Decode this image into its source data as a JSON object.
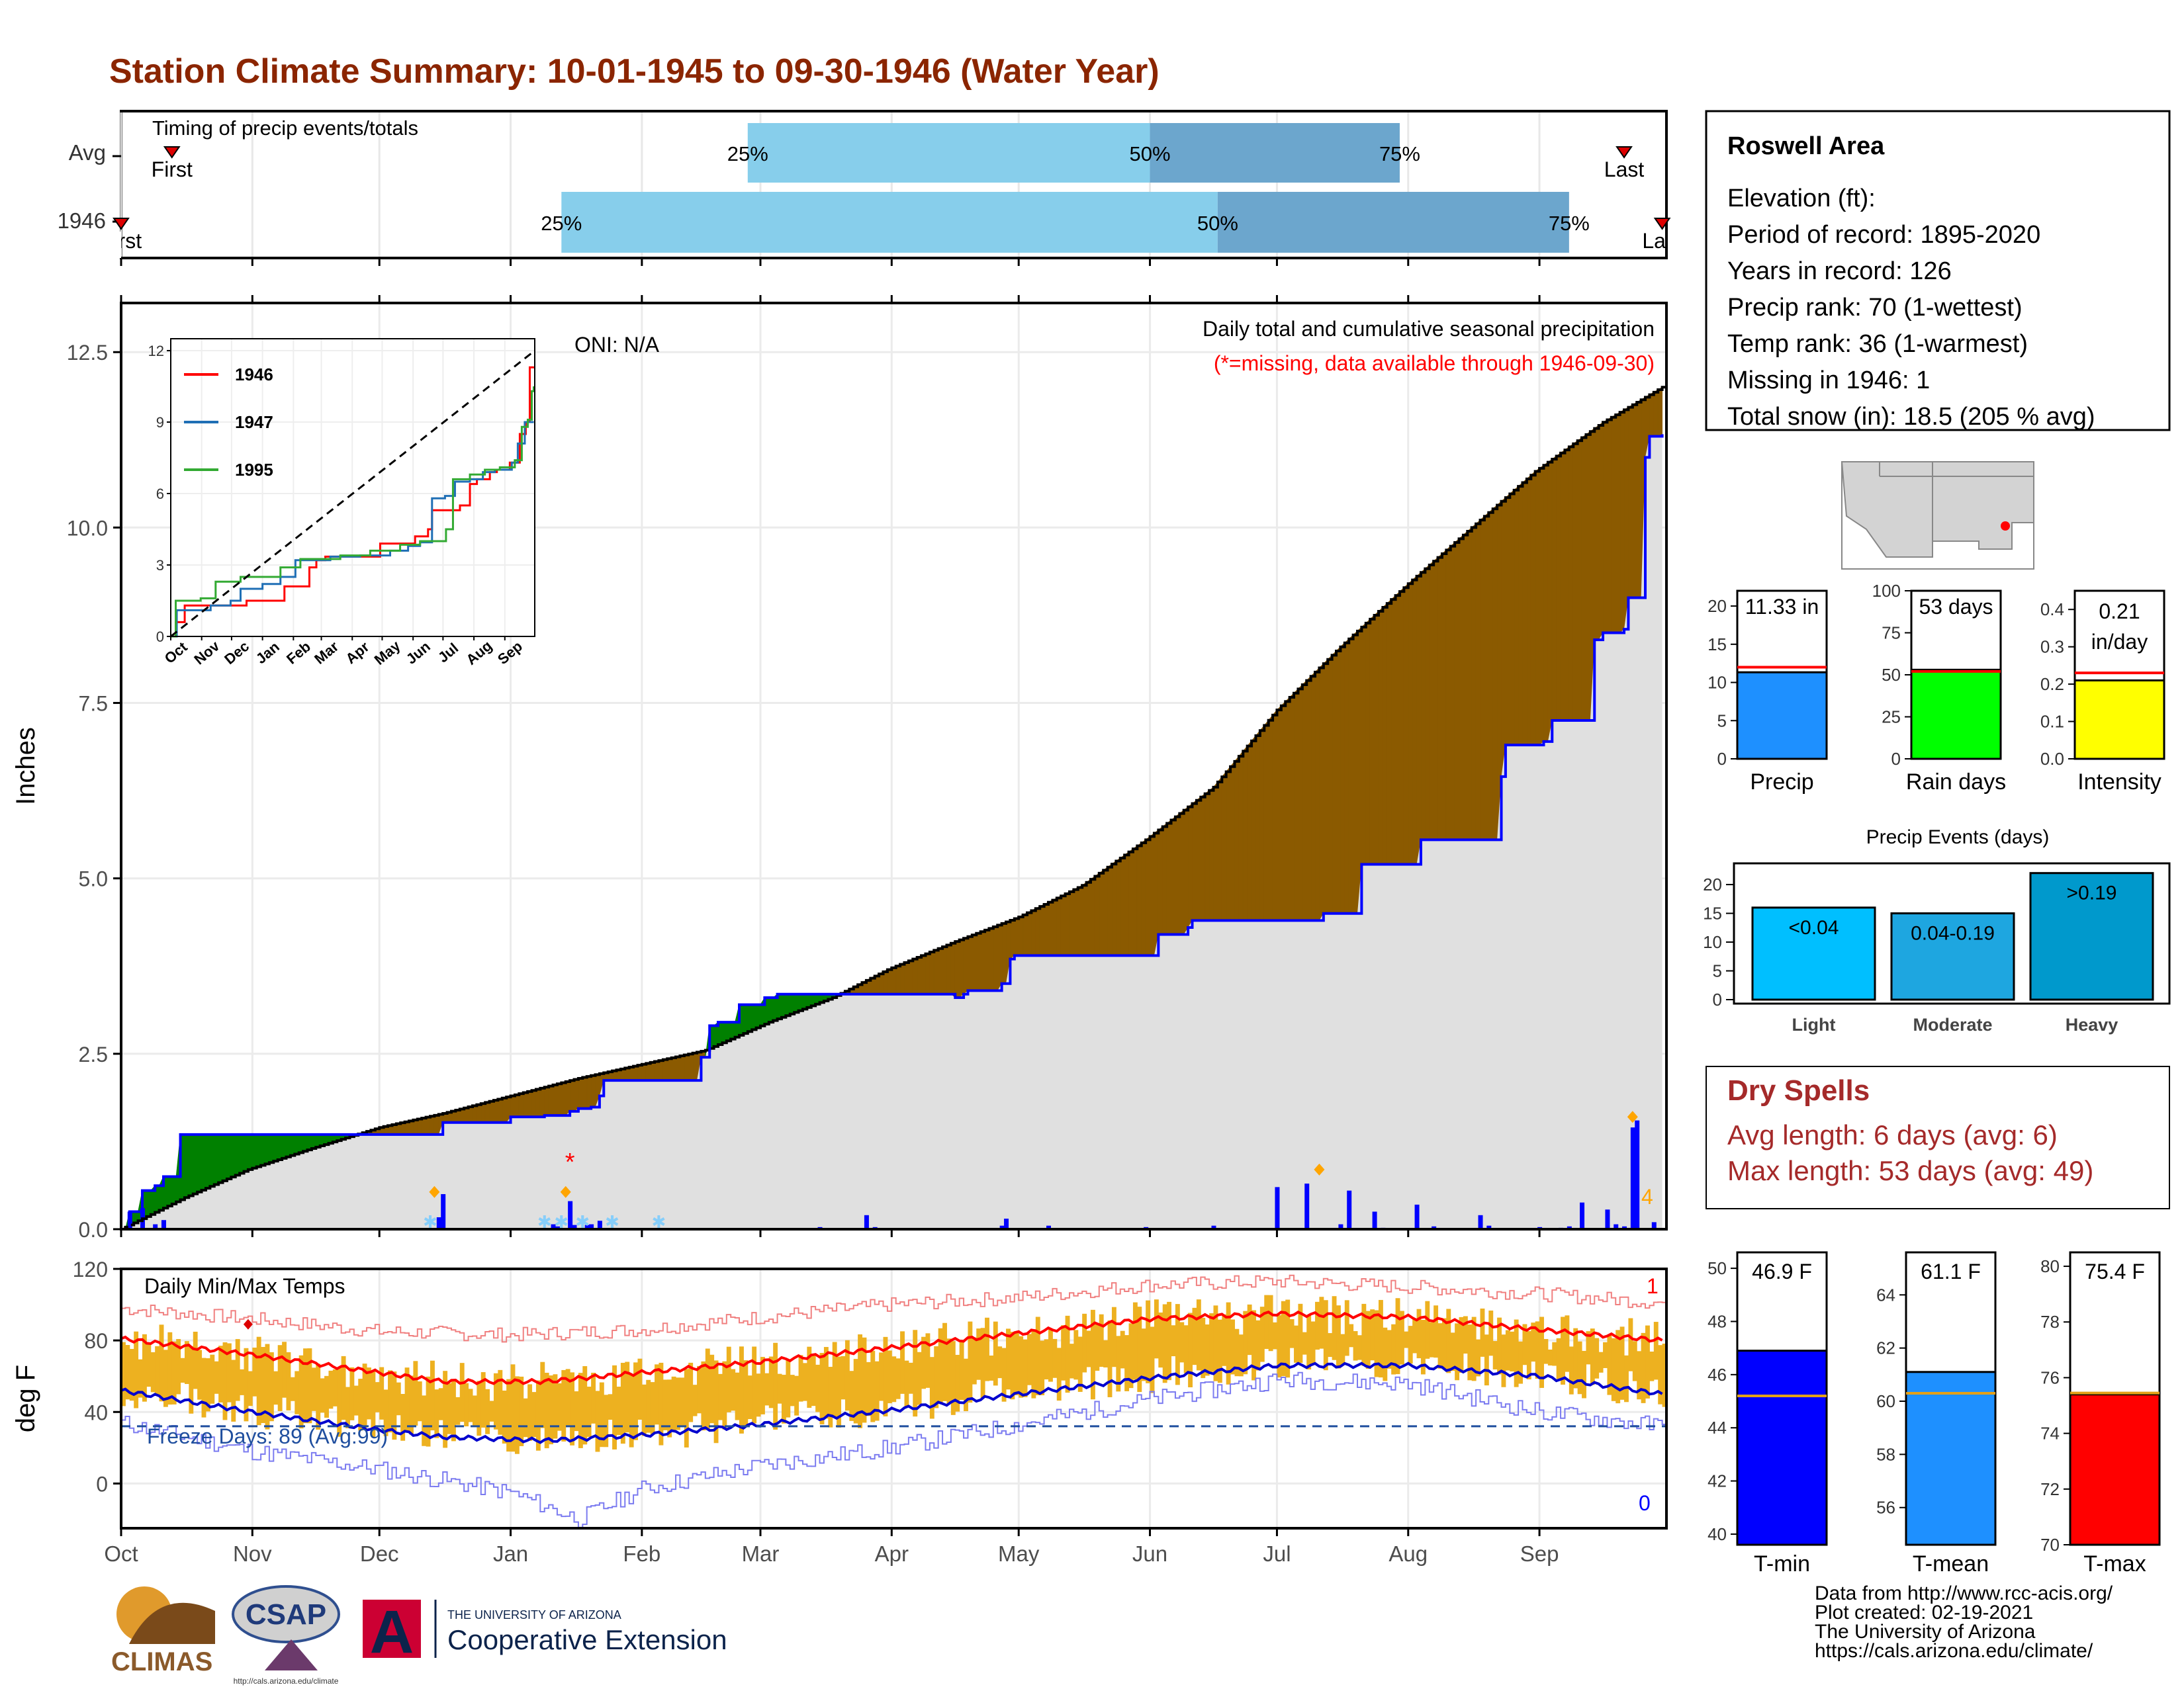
{
  "title": "Station Climate Summary: 10-01-1945 to 09-30-1946 (Water Year)",
  "colors": {
    "title": "#8B2500",
    "drier": "#8B5A00",
    "wetter": "#008000",
    "cum_line": "#0000FF",
    "band_light": "#87CEEB",
    "band_dark": "#6CA6CD",
    "tmax_bar": "#EDB120",
    "tmax_avg": "#FF0000",
    "tmin_avg": "#0000CD",
    "snow": "#87CEFA",
    "missing": "#FF0000",
    "extreme": "#FFA500"
  },
  "timing": {
    "label": "Timing of precip events/totals",
    "rows": [
      {
        "name": "Avg",
        "first_label": "First",
        "last_label": "Last",
        "first_day": 12,
        "last_day": 355,
        "p25": 148,
        "p50": 243,
        "p75": 302,
        "p25_label": "25%",
        "p50_label": "50%",
        "p75_label": "75%"
      },
      {
        "name": "1946",
        "first_label": "First",
        "last_label": "Last",
        "first_day": 0,
        "last_day": 364,
        "p25": 104,
        "p50": 259,
        "p75": 342,
        "p25_label": "25%",
        "p50_label": "50%",
        "p75_label": "75%"
      }
    ]
  },
  "precip_panel": {
    "ylabel": "Inches",
    "ylim": [
      0,
      13.2
    ],
    "yticks": [
      0.0,
      2.5,
      5.0,
      7.5,
      10.0,
      12.5
    ],
    "ytick_labels": [
      "0.0",
      "2.5",
      "5.0",
      "7.5",
      "10.0",
      "12.5"
    ],
    "oni_label": "ONI: N/A",
    "note1": "Daily total and cumulative seasonal precipitation",
    "note2": "(*=missing, data available through 1946-09-30)",
    "extreme_count_label": "4",
    "cumulative_avg_points": [
      [
        0,
        0.0
      ],
      [
        15,
        0.45
      ],
      [
        30,
        0.85
      ],
      [
        45,
        1.15
      ],
      [
        61,
        1.45
      ],
      [
        76,
        1.65
      ],
      [
        92,
        1.9
      ],
      [
        108,
        2.15
      ],
      [
        123,
        2.35
      ],
      [
        138,
        2.55
      ],
      [
        153,
        2.95
      ],
      [
        168,
        3.3
      ],
      [
        181,
        3.7
      ],
      [
        197,
        4.1
      ],
      [
        212,
        4.45
      ],
      [
        227,
        4.9
      ],
      [
        242,
        5.55
      ],
      [
        258,
        6.3
      ],
      [
        273,
        7.4
      ],
      [
        288,
        8.3
      ],
      [
        304,
        9.2
      ],
      [
        319,
        10.0
      ],
      [
        334,
        10.8
      ],
      [
        350,
        11.5
      ],
      [
        364,
        12.0
      ]
    ],
    "cumulative_1946_points": [
      [
        0,
        0.0
      ],
      [
        2,
        0.25
      ],
      [
        5,
        0.55
      ],
      [
        8,
        0.62
      ],
      [
        10,
        0.75
      ],
      [
        14,
        1.35
      ],
      [
        75,
        1.35
      ],
      [
        76,
        1.52
      ],
      [
        91,
        1.52
      ],
      [
        92,
        1.6
      ],
      [
        98,
        1.6
      ],
      [
        100,
        1.62
      ],
      [
        106,
        1.68
      ],
      [
        108,
        1.72
      ],
      [
        111,
        1.74
      ],
      [
        113,
        1.9
      ],
      [
        114,
        2.12
      ],
      [
        131,
        2.12
      ],
      [
        137,
        2.45
      ],
      [
        139,
        2.9
      ],
      [
        141,
        2.95
      ],
      [
        145,
        2.95
      ],
      [
        146,
        3.2
      ],
      [
        152,
        3.25
      ],
      [
        152,
        3.3
      ],
      [
        155,
        3.35
      ],
      [
        196,
        3.35
      ],
      [
        197,
        3.3
      ],
      [
        198,
        3.3
      ],
      [
        199,
        3.35
      ],
      [
        200,
        3.4
      ],
      [
        208,
        3.5
      ],
      [
        210,
        3.85
      ],
      [
        211,
        3.9
      ],
      [
        244,
        3.9
      ],
      [
        245,
        4.2
      ],
      [
        252,
        4.3
      ],
      [
        253,
        4.4
      ],
      [
        284,
        4.5
      ],
      [
        293,
        5.2
      ],
      [
        306,
        5.2
      ],
      [
        307,
        5.55
      ],
      [
        326,
        6.45
      ],
      [
        327,
        6.9
      ],
      [
        336,
        6.95
      ],
      [
        338,
        7.25
      ],
      [
        348,
        8.4
      ],
      [
        350,
        8.5
      ],
      [
        355,
        8.55
      ],
      [
        356,
        9.0
      ],
      [
        360,
        11.0
      ],
      [
        361,
        11.3
      ],
      [
        364,
        11.33
      ]
    ],
    "daily_bars": [
      [
        2,
        0.25
      ],
      [
        5,
        0.3
      ],
      [
        8,
        0.07
      ],
      [
        10,
        0.13
      ],
      [
        75,
        0.17
      ],
      [
        76,
        0.5
      ],
      [
        102,
        0.07
      ],
      [
        103,
        0.04
      ],
      [
        106,
        0.4
      ],
      [
        107,
        0.06
      ],
      [
        110,
        0.06
      ],
      [
        111,
        0.07
      ],
      [
        113,
        0.12
      ],
      [
        165,
        0.03
      ],
      [
        176,
        0.2
      ],
      [
        178,
        0.03
      ],
      [
        208,
        0.05
      ],
      [
        209,
        0.15
      ],
      [
        219,
        0.05
      ],
      [
        242,
        0.03
      ],
      [
        258,
        0.05
      ],
      [
        273,
        0.6
      ],
      [
        280,
        0.65
      ],
      [
        288,
        0.07
      ],
      [
        290,
        0.55
      ],
      [
        296,
        0.25
      ],
      [
        298,
        0.02
      ],
      [
        306,
        0.35
      ],
      [
        310,
        0.04
      ],
      [
        321,
        0.2
      ],
      [
        323,
        0.05
      ],
      [
        335,
        0.03
      ],
      [
        340,
        0.02
      ],
      [
        342,
        0.04
      ],
      [
        345,
        0.38
      ],
      [
        351,
        0.28
      ],
      [
        353,
        0.07
      ],
      [
        355,
        0.04
      ],
      [
        357,
        1.45
      ],
      [
        358,
        1.55
      ],
      [
        362,
        0.1
      ]
    ],
    "missing_marker": {
      "day": 106,
      "y": 0.95,
      "symbol": "*"
    },
    "extreme_markers": [
      [
        74,
        0.53
      ],
      [
        105,
        0.53
      ],
      [
        283,
        0.85
      ],
      [
        357,
        1.6
      ]
    ],
    "snow_markers": [
      73,
      100,
      104,
      109,
      116,
      127
    ]
  },
  "inset": {
    "xticks": [
      "Oct",
      "Nov",
      "Dec",
      "Jan",
      "Feb",
      "Mar",
      "Apr",
      "May",
      "Jun",
      "Jul",
      "Aug",
      "Sep"
    ],
    "yticks": [
      0,
      3,
      6,
      9,
      12
    ],
    "ylim": [
      0,
      12.5
    ],
    "series": [
      {
        "name": "1946",
        "color": "#FF0000",
        "points": [
          [
            0,
            0
          ],
          [
            5,
            0.6
          ],
          [
            14,
            1.3
          ],
          [
            76,
            1.5
          ],
          [
            114,
            2.1
          ],
          [
            139,
            2.9
          ],
          [
            146,
            3.2
          ],
          [
            155,
            3.35
          ],
          [
            210,
            3.9
          ],
          [
            245,
            4.2
          ],
          [
            258,
            4.5
          ],
          [
            262,
            5.3
          ],
          [
            290,
            5.5
          ],
          [
            300,
            6.4
          ],
          [
            307,
            6.6
          ],
          [
            320,
            6.9
          ],
          [
            327,
            7.0
          ],
          [
            340,
            7.3
          ],
          [
            350,
            8.5
          ],
          [
            356,
            9.0
          ],
          [
            360,
            11.3
          ],
          [
            364,
            11.33
          ]
        ]
      },
      {
        "name": "1947",
        "color": "#1F6FB5",
        "points": [
          [
            0,
            0
          ],
          [
            6,
            1.1
          ],
          [
            40,
            1.3
          ],
          [
            60,
            1.5
          ],
          [
            70,
            2.0
          ],
          [
            92,
            2.2
          ],
          [
            110,
            2.5
          ],
          [
            125,
            3.2
          ],
          [
            160,
            3.35
          ],
          [
            190,
            3.4
          ],
          [
            220,
            3.6
          ],
          [
            238,
            3.8
          ],
          [
            250,
            3.95
          ],
          [
            262,
            5.8
          ],
          [
            275,
            5.9
          ],
          [
            285,
            6.5
          ],
          [
            300,
            6.6
          ],
          [
            313,
            6.9
          ],
          [
            325,
            7.0
          ],
          [
            342,
            7.3
          ],
          [
            348,
            8.1
          ],
          [
            355,
            9.0
          ],
          [
            364,
            9.0
          ]
        ]
      },
      {
        "name": "1995",
        "color": "#33AA33",
        "points": [
          [
            0,
            0
          ],
          [
            5,
            1.5
          ],
          [
            30,
            1.6
          ],
          [
            45,
            2.3
          ],
          [
            70,
            2.5
          ],
          [
            90,
            2.5
          ],
          [
            110,
            2.9
          ],
          [
            130,
            3.25
          ],
          [
            170,
            3.4
          ],
          [
            200,
            3.6
          ],
          [
            230,
            3.85
          ],
          [
            250,
            4.0
          ],
          [
            276,
            4.5
          ],
          [
            283,
            6.6
          ],
          [
            300,
            6.8
          ],
          [
            315,
            7.0
          ],
          [
            330,
            7.1
          ],
          [
            345,
            7.4
          ],
          [
            352,
            8.8
          ],
          [
            358,
            9.1
          ],
          [
            362,
            10.3
          ],
          [
            364,
            10.5
          ]
        ]
      }
    ],
    "avg_line": [
      [
        0,
        0
      ],
      [
        365,
        12.0
      ]
    ]
  },
  "temp_panel": {
    "title": "Daily Min/Max Temps",
    "ylabel": "deg F",
    "ylim": [
      -25,
      120
    ],
    "yticks": [
      0,
      40,
      80,
      120
    ],
    "freeze_label": "Freeze Days: 89 (Avg:99)",
    "freeze_line": 32,
    "count_high": "1",
    "count_low": "0",
    "months": [
      "Oct",
      "Nov",
      "Dec",
      "Jan",
      "Feb",
      "Mar",
      "Apr",
      "May",
      "Jun",
      "Jul",
      "Aug",
      "Sep"
    ],
    "month_start_days": [
      0,
      31,
      61,
      92,
      123,
      151,
      182,
      212,
      243,
      273,
      304,
      335
    ],
    "avg_max_points": [
      [
        0,
        81
      ],
      [
        31,
        72
      ],
      [
        61,
        62
      ],
      [
        76,
        57
      ],
      [
        100,
        57
      ],
      [
        123,
        62
      ],
      [
        151,
        68
      ],
      [
        182,
        76
      ],
      [
        212,
        84
      ],
      [
        243,
        92
      ],
      [
        273,
        95
      ],
      [
        304,
        93
      ],
      [
        335,
        86
      ],
      [
        364,
        80
      ]
    ],
    "avg_min_points": [
      [
        0,
        52
      ],
      [
        31,
        40
      ],
      [
        61,
        30
      ],
      [
        76,
        26
      ],
      [
        100,
        24
      ],
      [
        123,
        27
      ],
      [
        151,
        33
      ],
      [
        182,
        41
      ],
      [
        212,
        50
      ],
      [
        243,
        59
      ],
      [
        273,
        66
      ],
      [
        304,
        66
      ],
      [
        335,
        60
      ],
      [
        364,
        50
      ]
    ],
    "record_max_points": [
      [
        0,
        98
      ],
      [
        31,
        92
      ],
      [
        61,
        85
      ],
      [
        92,
        83
      ],
      [
        123,
        86
      ],
      [
        151,
        93
      ],
      [
        182,
        100
      ],
      [
        212,
        104
      ],
      [
        243,
        111
      ],
      [
        273,
        113
      ],
      [
        304,
        110
      ],
      [
        335,
        106
      ],
      [
        364,
        101
      ]
    ],
    "record_min_points": [
      [
        0,
        34
      ],
      [
        31,
        18
      ],
      [
        61,
        8
      ],
      [
        92,
        -5
      ],
      [
        108,
        -20
      ],
      [
        123,
        -3
      ],
      [
        151,
        10
      ],
      [
        182,
        20
      ],
      [
        212,
        33
      ],
      [
        243,
        47
      ],
      [
        273,
        58
      ],
      [
        304,
        56
      ],
      [
        335,
        40
      ],
      [
        364,
        32
      ]
    ],
    "record_high_marker": {
      "day": 30,
      "y": 89
    }
  },
  "info": {
    "station": "Roswell Area",
    "lines": [
      "Elevation (ft):",
      "Period of record: 1895-2020",
      "Years in record: 126",
      "Precip rank: 70 (1-wettest)",
      "Temp rank: 36 (1-warmest)",
      "Missing in 1946: 1",
      "Total snow (in): 18.5 (205 % avg)"
    ]
  },
  "gauges": [
    {
      "label": "Precip",
      "value_label": "11.33 in",
      "value": 11.33,
      "avg": 12.0,
      "max": 22,
      "ticks": [
        0,
        5,
        10,
        15,
        20
      ],
      "color": "#1E90FF"
    },
    {
      "label": "Rain days",
      "value_label": "53 days",
      "value": 53,
      "avg": 52,
      "max": 100,
      "ticks": [
        0,
        25,
        50,
        75,
        100
      ],
      "color": "#00FF00"
    },
    {
      "label": "Intensity",
      "value_label1": "0.21",
      "value_label2": "in/day",
      "value": 0.21,
      "avg": 0.23,
      "max": 0.45,
      "ticks": [
        0.0,
        0.1,
        0.2,
        0.3,
        0.4
      ],
      "tick_labels": [
        "0.0",
        "0.1",
        "0.2",
        "0.3",
        "0.4"
      ],
      "color": "#FFFF00"
    }
  ],
  "events": {
    "title": "Precip Events (days)",
    "ylim": [
      0,
      23
    ],
    "yticks": [
      0,
      5,
      10,
      15,
      20
    ],
    "bars": [
      {
        "category": "Light",
        "label": "<0.04",
        "value": 16,
        "color": "#00BFFF"
      },
      {
        "category": "Moderate",
        "label": "0.04-0.19",
        "value": 15,
        "color": "#1EA6E0"
      },
      {
        "category": "Heavy",
        "label": ">0.19",
        "value": 22,
        "color": "#0099CC"
      }
    ]
  },
  "dry_spells": {
    "title": "Dry Spells",
    "avg_line": "Avg length: 6 days (avg: 6)",
    "max_line": "Max length: 53 days (avg: 49)"
  },
  "temp_gauges": [
    {
      "label": "T-min",
      "value_label": "46.9 F",
      "value": 46.9,
      "avg": 45.2,
      "min": 39.6,
      "max": 50.6,
      "ticks": [
        40,
        42,
        44,
        46,
        48,
        50
      ],
      "color": "#0000FF"
    },
    {
      "label": "T-mean",
      "value_label": "61.1 F",
      "value": 61.1,
      "avg": 60.3,
      "min": 54.6,
      "max": 65.6,
      "ticks": [
        56,
        58,
        60,
        62,
        64
      ],
      "color": "#1E90FF"
    },
    {
      "label": "T-max",
      "value_label": "75.4 F",
      "value": 75.4,
      "avg": 75.45,
      "min": 70.0,
      "max": 80.5,
      "ticks": [
        70,
        72,
        74,
        76,
        78,
        80
      ],
      "color": "#FF0000"
    }
  ],
  "footer": {
    "lines": [
      "Data from http://www.rcc-acis.org/",
      "Plot created: 02-19-2021",
      "The University of Arizona",
      "https://cals.arizona.edu/climate/"
    ],
    "climas": "CLIMAS",
    "csap": "CSAP",
    "csap_url": "http://cals.arizona.edu/climate",
    "ua_small": "THE UNIVERSITY OF ARIZONA",
    "ua_big": "Cooperative Extension",
    "ua_letter": "A"
  }
}
